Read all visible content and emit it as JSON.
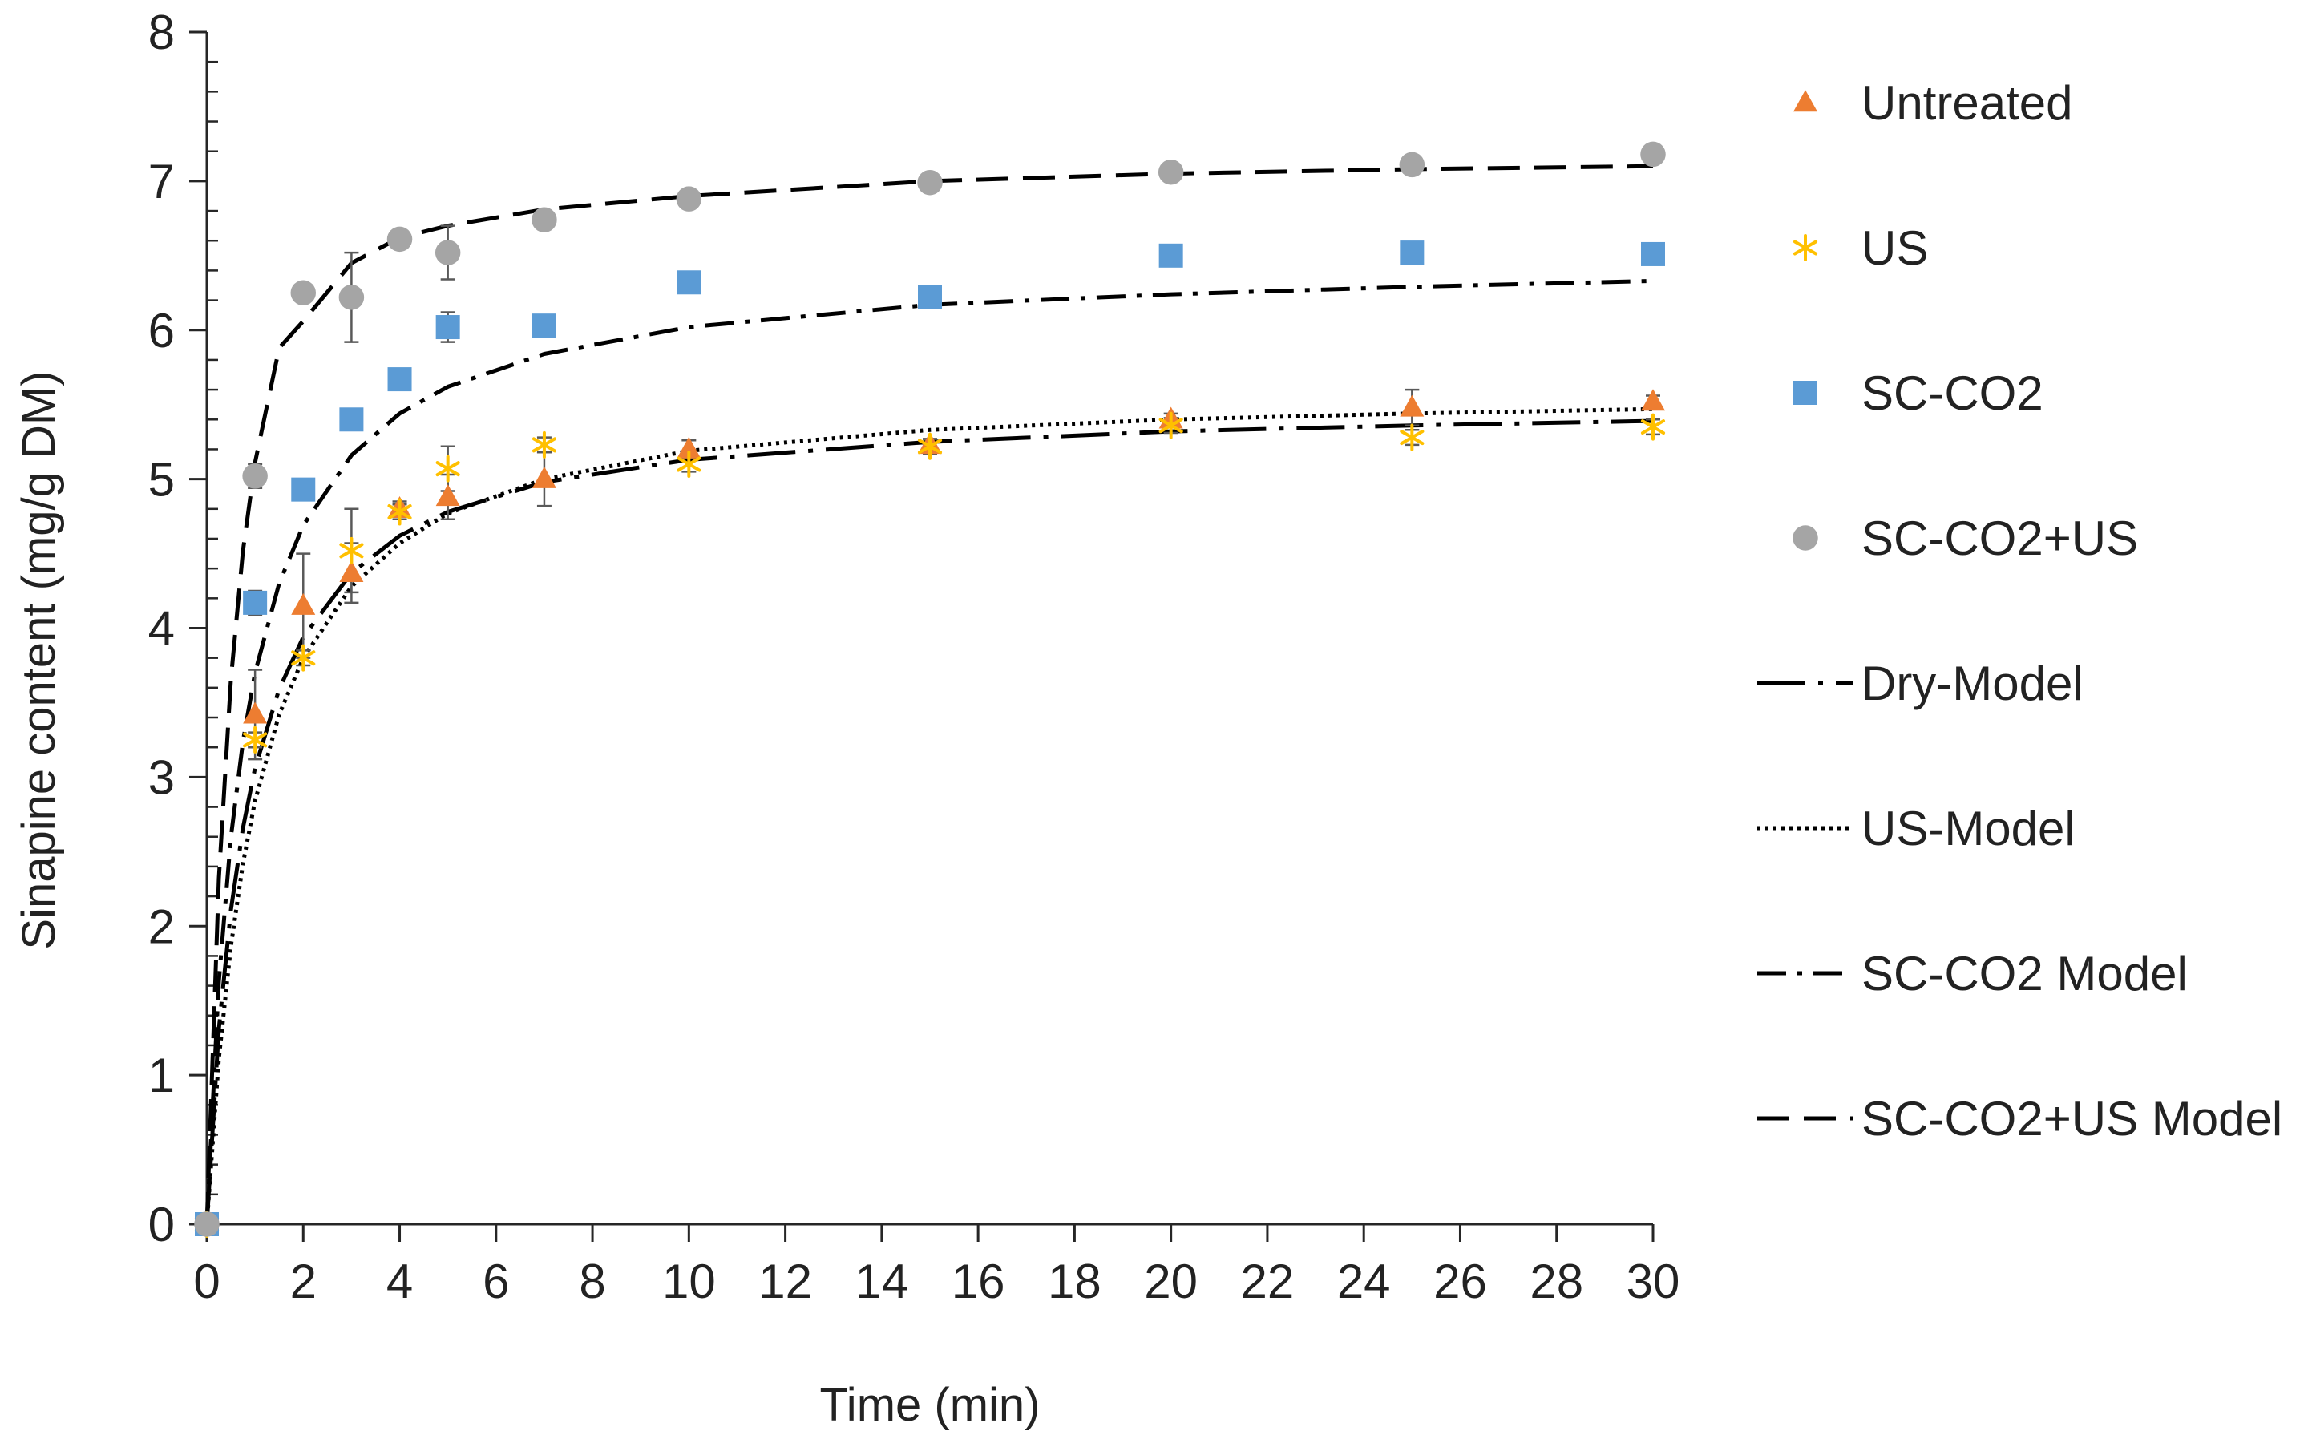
{
  "chart_data": {
    "type": "scatter",
    "title": "",
    "xlabel": "Time (min)",
    "ylabel": "Sinapine content (mg/g DM)",
    "xlim": [
      0,
      30
    ],
    "ylim": [
      0,
      8
    ],
    "x_ticks": [
      0,
      2,
      4,
      6,
      8,
      10,
      12,
      14,
      16,
      18,
      20,
      22,
      24,
      26,
      28,
      30
    ],
    "y_ticks": [
      0,
      1,
      2,
      3,
      4,
      5,
      6,
      7,
      8
    ],
    "x_tick_labels": [
      "0",
      "2",
      "4",
      "6",
      "8",
      "10",
      "12",
      "14",
      "16",
      "18",
      "20",
      "22",
      "24",
      "26",
      "28",
      "30"
    ],
    "y_tick_labels": [
      "0",
      "1",
      "2",
      "3",
      "4",
      "5",
      "6",
      "7",
      "8"
    ],
    "grid": false,
    "legend_position": "right",
    "series": [
      {
        "name": "Untreated",
        "kind": "points",
        "marker": "triangle",
        "color": "#ED7D31",
        "x": [
          0,
          1,
          2,
          3,
          4,
          5,
          7,
          10,
          15,
          20,
          25,
          30
        ],
        "y": [
          0,
          3.42,
          4.15,
          4.37,
          4.8,
          4.88,
          5.0,
          5.2,
          5.23,
          5.4,
          5.48,
          5.52
        ],
        "err": [
          0,
          0.3,
          0.35,
          0.2,
          0.05,
          0.15,
          0.18,
          0.06,
          0.04,
          0.04,
          0.12,
          0.04
        ]
      },
      {
        "name": "US",
        "kind": "points",
        "marker": "asterisk",
        "color": "#FFC000",
        "x": [
          0,
          1,
          2,
          3,
          4,
          5,
          7,
          10,
          15,
          20,
          25,
          30
        ],
        "y": [
          0,
          3.25,
          3.8,
          4.52,
          4.78,
          5.07,
          5.23,
          5.1,
          5.22,
          5.36,
          5.28,
          5.35
        ],
        "err": [
          0,
          0.05,
          0.05,
          0.28,
          0.05,
          0.15,
          0.05,
          0.05,
          0.05,
          0.05,
          0.05,
          0.05
        ]
      },
      {
        "name": "SC-CO2",
        "kind": "points",
        "marker": "square",
        "color": "#5B9BD5",
        "x": [
          0,
          1,
          2,
          3,
          4,
          5,
          7,
          10,
          15,
          20,
          25,
          30
        ],
        "y": [
          0,
          4.17,
          4.93,
          5.4,
          5.67,
          6.02,
          6.03,
          6.32,
          6.22,
          6.5,
          6.52,
          6.51
        ],
        "err": [
          0,
          0.08,
          0.04,
          0.03,
          0.07,
          0.1,
          0.03,
          0.04,
          0.04,
          0.04,
          0.04,
          0.04
        ]
      },
      {
        "name": "SC-CO2+US",
        "kind": "points",
        "marker": "circle",
        "color": "#A5A5A5",
        "x": [
          0,
          1,
          2,
          3,
          4,
          5,
          7,
          10,
          15,
          20,
          25,
          30
        ],
        "y": [
          0,
          5.02,
          6.25,
          6.22,
          6.61,
          6.52,
          6.74,
          6.88,
          6.99,
          7.06,
          7.11,
          7.18
        ],
        "err": [
          0,
          0.08,
          0.03,
          0.3,
          0.06,
          0.18,
          0.03,
          0.03,
          0.03,
          0.03,
          0.03,
          0.03
        ]
      },
      {
        "name": "Dry-Model",
        "kind": "line",
        "dash": "longdashdot",
        "color": "#000000",
        "x": [
          0,
          0.25,
          0.5,
          0.75,
          1,
          1.5,
          2,
          3,
          4,
          5,
          7,
          10,
          15,
          20,
          25,
          30
        ],
        "y": [
          0,
          1.31,
          2.11,
          2.66,
          3.06,
          3.59,
          3.94,
          4.37,
          4.62,
          4.78,
          4.98,
          5.13,
          5.25,
          5.32,
          5.36,
          5.39
        ]
      },
      {
        "name": "US-Model",
        "kind": "line",
        "dash": "dotted",
        "color": "#000000",
        "x": [
          0,
          0.25,
          0.5,
          0.75,
          1,
          1.5,
          2,
          3,
          4,
          5,
          7,
          10,
          15,
          20,
          25,
          30
        ],
        "y": [
          0,
          1.11,
          1.87,
          2.42,
          2.84,
          3.42,
          3.8,
          4.28,
          4.57,
          4.77,
          5.0,
          5.19,
          5.33,
          5.4,
          5.44,
          5.47
        ]
      },
      {
        "name": "SC-CO2 Model",
        "kind": "line",
        "dash": "dashdot",
        "color": "#000000",
        "x": [
          0,
          0.25,
          0.5,
          0.75,
          1,
          1.5,
          2,
          3,
          4,
          5,
          7,
          10,
          15,
          20,
          25,
          30
        ],
        "y": [
          0,
          1.63,
          2.6,
          3.24,
          3.7,
          4.3,
          4.69,
          5.16,
          5.44,
          5.62,
          5.84,
          6.02,
          6.17,
          6.24,
          6.29,
          6.33
        ]
      },
      {
        "name": "SC-CO2+US Model",
        "kind": "line",
        "dash": "dashed",
        "color": "#000000",
        "x": [
          0,
          0.25,
          0.5,
          0.75,
          1,
          1.5,
          2,
          3,
          4,
          5,
          7,
          10,
          15,
          20,
          25,
          30
        ],
        "y": [
          0,
          2.32,
          3.66,
          4.52,
          5.11,
          5.88,
          6.06,
          6.45,
          6.62,
          6.7,
          6.81,
          6.9,
          7.0,
          7.05,
          7.08,
          7.1
        ]
      }
    ]
  }
}
